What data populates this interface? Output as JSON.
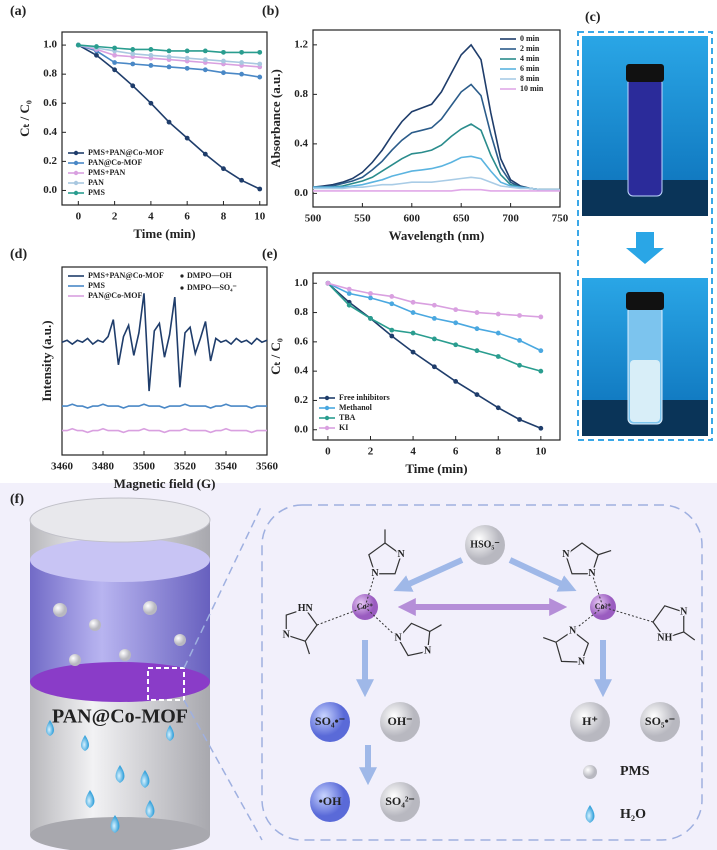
{
  "chart_data": [
    {
      "type": "line",
      "label": "(a)",
      "xlabel": "Time (min)",
      "ylabel": "Cₜ / C₀",
      "x": [
        0,
        1,
        2,
        3,
        4,
        5,
        6,
        7,
        8,
        9,
        10
      ],
      "series": [
        {
          "name": "PMS+PAN@Co-MOF",
          "color": "#1f3d6b",
          "values": [
            1.0,
            0.93,
            0.83,
            0.72,
            0.6,
            0.47,
            0.36,
            0.25,
            0.15,
            0.07,
            0.01
          ]
        },
        {
          "name": "PAN@Co-MOF",
          "color": "#4a88c6",
          "values": [
            1.0,
            0.96,
            0.88,
            0.87,
            0.86,
            0.85,
            0.84,
            0.83,
            0.81,
            0.8,
            0.78
          ]
        },
        {
          "name": "PMS+PAN",
          "color": "#d9a0e0",
          "values": [
            1.0,
            0.97,
            0.93,
            0.92,
            0.91,
            0.9,
            0.89,
            0.88,
            0.87,
            0.86,
            0.85
          ]
        },
        {
          "name": "PAN",
          "color": "#a9c8e0",
          "values": [
            1.0,
            0.98,
            0.96,
            0.94,
            0.93,
            0.92,
            0.91,
            0.9,
            0.89,
            0.88,
            0.87
          ]
        },
        {
          "name": "PMS",
          "color": "#2a9d8f",
          "values": [
            1.0,
            0.99,
            0.98,
            0.97,
            0.97,
            0.96,
            0.96,
            0.96,
            0.95,
            0.95,
            0.95
          ]
        }
      ],
      "xlim": [
        -0.9,
        10.4
      ],
      "xticks": [
        0,
        2,
        4,
        6,
        8,
        10
      ],
      "ylim": [
        -0.1,
        1.09
      ],
      "yticks": [
        {
          "value": 0,
          "label": "0.0"
        },
        0.2,
        0.4,
        0.6,
        0.8,
        {
          "value": 1,
          "label": "1.0"
        }
      ],
      "marker": true,
      "legend": "lower left"
    },
    {
      "type": "line",
      "label": "(b)",
      "xlabel": "Wavelength (nm)",
      "ylabel": "Absorbance (a.u.)",
      "x": [
        500,
        510,
        520,
        530,
        540,
        550,
        560,
        570,
        580,
        590,
        600,
        610,
        620,
        630,
        640,
        650,
        660,
        670,
        680,
        690,
        700,
        710,
        720,
        730,
        740,
        750
      ],
      "series": [
        {
          "name": "0 min",
          "color": "#1f3d6b",
          "values": [
            0.05,
            0.06,
            0.07,
            0.09,
            0.12,
            0.17,
            0.25,
            0.35,
            0.47,
            0.58,
            0.66,
            0.69,
            0.72,
            0.82,
            0.97,
            1.12,
            1.2,
            1.08,
            0.65,
            0.28,
            0.11,
            0.06,
            0.04,
            0.03,
            0.03,
            0.03
          ]
        },
        {
          "name": "2 min",
          "color": "#2b5c8a",
          "values": [
            0.05,
            0.05,
            0.06,
            0.08,
            0.1,
            0.13,
            0.19,
            0.26,
            0.35,
            0.43,
            0.49,
            0.51,
            0.53,
            0.6,
            0.71,
            0.82,
            0.88,
            0.79,
            0.48,
            0.21,
            0.09,
            0.05,
            0.04,
            0.03,
            0.03,
            0.03
          ]
        },
        {
          "name": "4 min",
          "color": "#2a8c8c",
          "values": [
            0.05,
            0.05,
            0.05,
            0.06,
            0.08,
            0.1,
            0.13,
            0.18,
            0.23,
            0.28,
            0.32,
            0.33,
            0.35,
            0.39,
            0.46,
            0.52,
            0.56,
            0.51,
            0.31,
            0.15,
            0.07,
            0.05,
            0.04,
            0.03,
            0.03,
            0.03
          ]
        },
        {
          "name": "6 min",
          "color": "#5bb4e0",
          "values": [
            0.05,
            0.05,
            0.05,
            0.05,
            0.06,
            0.07,
            0.09,
            0.11,
            0.14,
            0.16,
            0.18,
            0.19,
            0.2,
            0.22,
            0.25,
            0.29,
            0.3,
            0.28,
            0.18,
            0.09,
            0.06,
            0.05,
            0.04,
            0.03,
            0.03,
            0.03
          ]
        },
        {
          "name": "8 min",
          "color": "#a9cce6",
          "values": [
            0.04,
            0.04,
            0.04,
            0.04,
            0.05,
            0.05,
            0.06,
            0.07,
            0.07,
            0.08,
            0.09,
            0.09,
            0.09,
            0.1,
            0.11,
            0.12,
            0.13,
            0.12,
            0.09,
            0.06,
            0.05,
            0.04,
            0.04,
            0.03,
            0.03,
            0.03
          ]
        },
        {
          "name": "10 min",
          "color": "#e0a8e8",
          "values": [
            0.02,
            0.02,
            0.02,
            0.02,
            0.02,
            0.02,
            0.02,
            0.02,
            0.02,
            0.02,
            0.02,
            0.02,
            0.02,
            0.02,
            0.02,
            0.03,
            0.03,
            0.03,
            0.02,
            0.02,
            0.02,
            0.02,
            0.02,
            0.02,
            0.02,
            0.02
          ]
        }
      ],
      "xlim": [
        500,
        750
      ],
      "xticks": [
        500,
        550,
        600,
        650,
        700,
        750
      ],
      "ylim": [
        -0.11,
        1.32
      ],
      "yticks": [
        {
          "value": 0,
          "label": "0.0"
        },
        0.4,
        0.8,
        1.2
      ],
      "marker": false,
      "legend": "upper right"
    },
    {
      "type": "line",
      "label": "(d)",
      "xlabel": "Magnetic field (G)",
      "ylabel": "Intensity (a.u.)",
      "x": [
        3460,
        3462.5,
        3465,
        3467.5,
        3470,
        3472.5,
        3475,
        3477.5,
        3480,
        3482.5,
        3485,
        3487.5,
        3490,
        3492.5,
        3495,
        3497.5,
        3500,
        3502.5,
        3505,
        3507.5,
        3510,
        3512.5,
        3515,
        3517.5,
        3520,
        3522.5,
        3525,
        3527.5,
        3530,
        3532.5,
        3535,
        3537.5,
        3540,
        3542.5,
        3545,
        3547.5,
        3550,
        3552.5,
        3555,
        3557.5,
        3560
      ],
      "series": [
        {
          "name": "PMS+PAN@Co-MOF",
          "color": "#1f3d6b",
          "values": [
            6.0,
            6.1,
            5.9,
            6.1,
            6.0,
            6.2,
            5.9,
            6.1,
            6.0,
            6.3,
            7.2,
            4.8,
            6.3,
            6.9,
            5.3,
            6.5,
            8.6,
            3.4,
            6.6,
            7.0,
            5.2,
            6.4,
            8.4,
            3.6,
            6.5,
            6.8,
            5.4,
            6.2,
            7.1,
            5.0,
            6.2,
            6.0,
            6.1,
            5.9,
            6.2,
            6.0,
            6.1,
            5.9,
            6.2,
            6.0,
            6.1
          ]
        },
        {
          "name": "PMS",
          "color": "#4a88c6",
          "values": [
            2.6,
            2.6,
            2.7,
            2.6,
            2.6,
            2.5,
            2.6,
            2.6,
            2.7,
            2.6,
            2.6,
            2.6,
            2.5,
            2.6,
            2.6,
            2.6,
            2.7,
            2.6,
            2.6,
            2.6,
            2.5,
            2.6,
            2.6,
            2.6,
            2.7,
            2.6,
            2.6,
            2.6,
            2.6,
            2.5,
            2.6,
            2.6,
            2.7,
            2.6,
            2.6,
            2.6,
            2.6,
            2.5,
            2.6,
            2.6,
            2.6
          ]
        },
        {
          "name": "PAN@Co-MOF",
          "color": "#d9a0e0",
          "values": [
            1.3,
            1.3,
            1.4,
            1.3,
            1.3,
            1.2,
            1.3,
            1.3,
            1.4,
            1.3,
            1.3,
            1.3,
            1.2,
            1.3,
            1.3,
            1.3,
            1.4,
            1.3,
            1.3,
            1.3,
            1.2,
            1.3,
            1.3,
            1.3,
            1.4,
            1.3,
            1.3,
            1.3,
            1.3,
            1.2,
            1.3,
            1.3,
            1.4,
            1.3,
            1.3,
            1.3,
            1.3,
            1.2,
            1.3,
            1.3,
            1.3
          ]
        }
      ],
      "annotations": [
        "DMPO—OH",
        "DMPO—SO₄⁻"
      ],
      "xlim": [
        3460,
        3560
      ],
      "xticks": [
        3460,
        3480,
        3500,
        3520,
        3540,
        3560
      ],
      "ylim": [
        0,
        10
      ],
      "marker": false,
      "legend": "upper left"
    },
    {
      "type": "line",
      "label": "(e)",
      "xlabel": "Time (min)",
      "ylabel": "Cₜ / C₀",
      "x": [
        0,
        1,
        2,
        3,
        4,
        5,
        6,
        7,
        8,
        9,
        10
      ],
      "series": [
        {
          "name": "Free inhibitors",
          "color": "#1f3d6b",
          "values": [
            1.0,
            0.87,
            0.76,
            0.64,
            0.53,
            0.43,
            0.33,
            0.24,
            0.15,
            0.07,
            0.01
          ]
        },
        {
          "name": "Methanol",
          "color": "#4aa8e0",
          "values": [
            1.0,
            0.93,
            0.9,
            0.86,
            0.8,
            0.76,
            0.73,
            0.69,
            0.66,
            0.61,
            0.54
          ]
        },
        {
          "name": "TBA",
          "color": "#2a9d8f",
          "values": [
            1.0,
            0.85,
            0.76,
            0.68,
            0.66,
            0.62,
            0.58,
            0.54,
            0.5,
            0.44,
            0.4
          ]
        },
        {
          "name": "KI",
          "color": "#d9a0e0",
          "values": [
            1.0,
            0.96,
            0.93,
            0.91,
            0.87,
            0.85,
            0.82,
            0.8,
            0.79,
            0.78,
            0.77
          ]
        }
      ],
      "xlim": [
        -0.7,
        10.9
      ],
      "xticks": [
        0,
        2,
        4,
        6,
        8,
        10
      ],
      "ylim": [
        -0.07,
        1.07
      ],
      "yticks": [
        {
          "value": 0,
          "label": "0.0"
        },
        0.2,
        0.4,
        0.6,
        0.8,
        {
          "value": 1,
          "label": "1.0"
        }
      ],
      "marker": true,
      "legend": "lower left"
    }
  ],
  "photo": {
    "label": "(c)"
  },
  "diagram": {
    "label": "(f)",
    "membrane": "PAN@Co-MOF",
    "oxidant": "HSO₅⁻",
    "co2": "Co²⁺",
    "co3": "Co³⁺",
    "so4_radical": "SO₄•⁻",
    "hydroxide": "OH⁻",
    "oh_radical": "•OH",
    "sulfate": "SO₄²⁻",
    "proton": "H⁺",
    "so5_radical": "SO₅•⁻",
    "pms": "PMS",
    "water": "H₂O",
    "atoms": [
      "N",
      "N",
      "N",
      "HN",
      "N",
      "N",
      "N",
      "N",
      "N",
      "N",
      "NH",
      "N"
    ]
  }
}
